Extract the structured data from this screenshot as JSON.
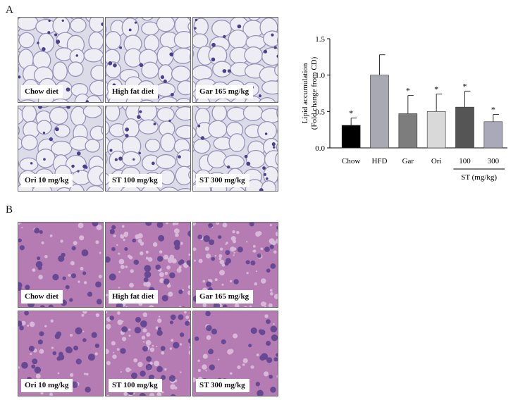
{
  "figure": {
    "panel_a_label": "A",
    "panel_b_label": "B",
    "panel_a_tiles": [
      "Chow diet",
      "High fat diet",
      "Gar 165 mg/kg",
      "Ori 10 mg/kg",
      "ST 100 mg/kg",
      "ST 300 mg/kg"
    ],
    "panel_b_tiles": [
      "Chow diet",
      "High fat diet",
      "Gar 165 mg/kg",
      "Ori 10 mg/kg",
      "ST 100 mg/kg",
      "ST 300 mg/kg"
    ],
    "colors": {
      "adipose_bg": "#dcdbe8",
      "adipose_line": "#9792b9",
      "liver_bg": "#b47cb2",
      "liver_nucleus": "#5a3f8e"
    }
  },
  "chart_data": {
    "type": "bar",
    "categories": [
      "Chow",
      "HFD",
      "Gar",
      "Ori",
      "100",
      "300"
    ],
    "values": [
      0.31,
      1.0,
      0.47,
      0.5,
      0.56,
      0.36
    ],
    "errors": [
      0.1,
      0.28,
      0.25,
      0.24,
      0.22,
      0.1
    ],
    "significance": [
      "*",
      "",
      "*",
      "*",
      "*",
      "*"
    ],
    "bar_colors": [
      "#000000",
      "#a9a9b3",
      "#7d7d7d",
      "#d9d9d9",
      "#555555",
      "#a9a9b9"
    ],
    "ylabel_line1": "Lipid accumulation",
    "ylabel_line2": "(Fold change from CD)",
    "ylim": [
      0,
      1.5
    ],
    "yticks": [
      "0.0",
      "0.5",
      "1.0",
      "1.5"
    ],
    "group_label": "ST (mg/kg)",
    "grid": false
  }
}
